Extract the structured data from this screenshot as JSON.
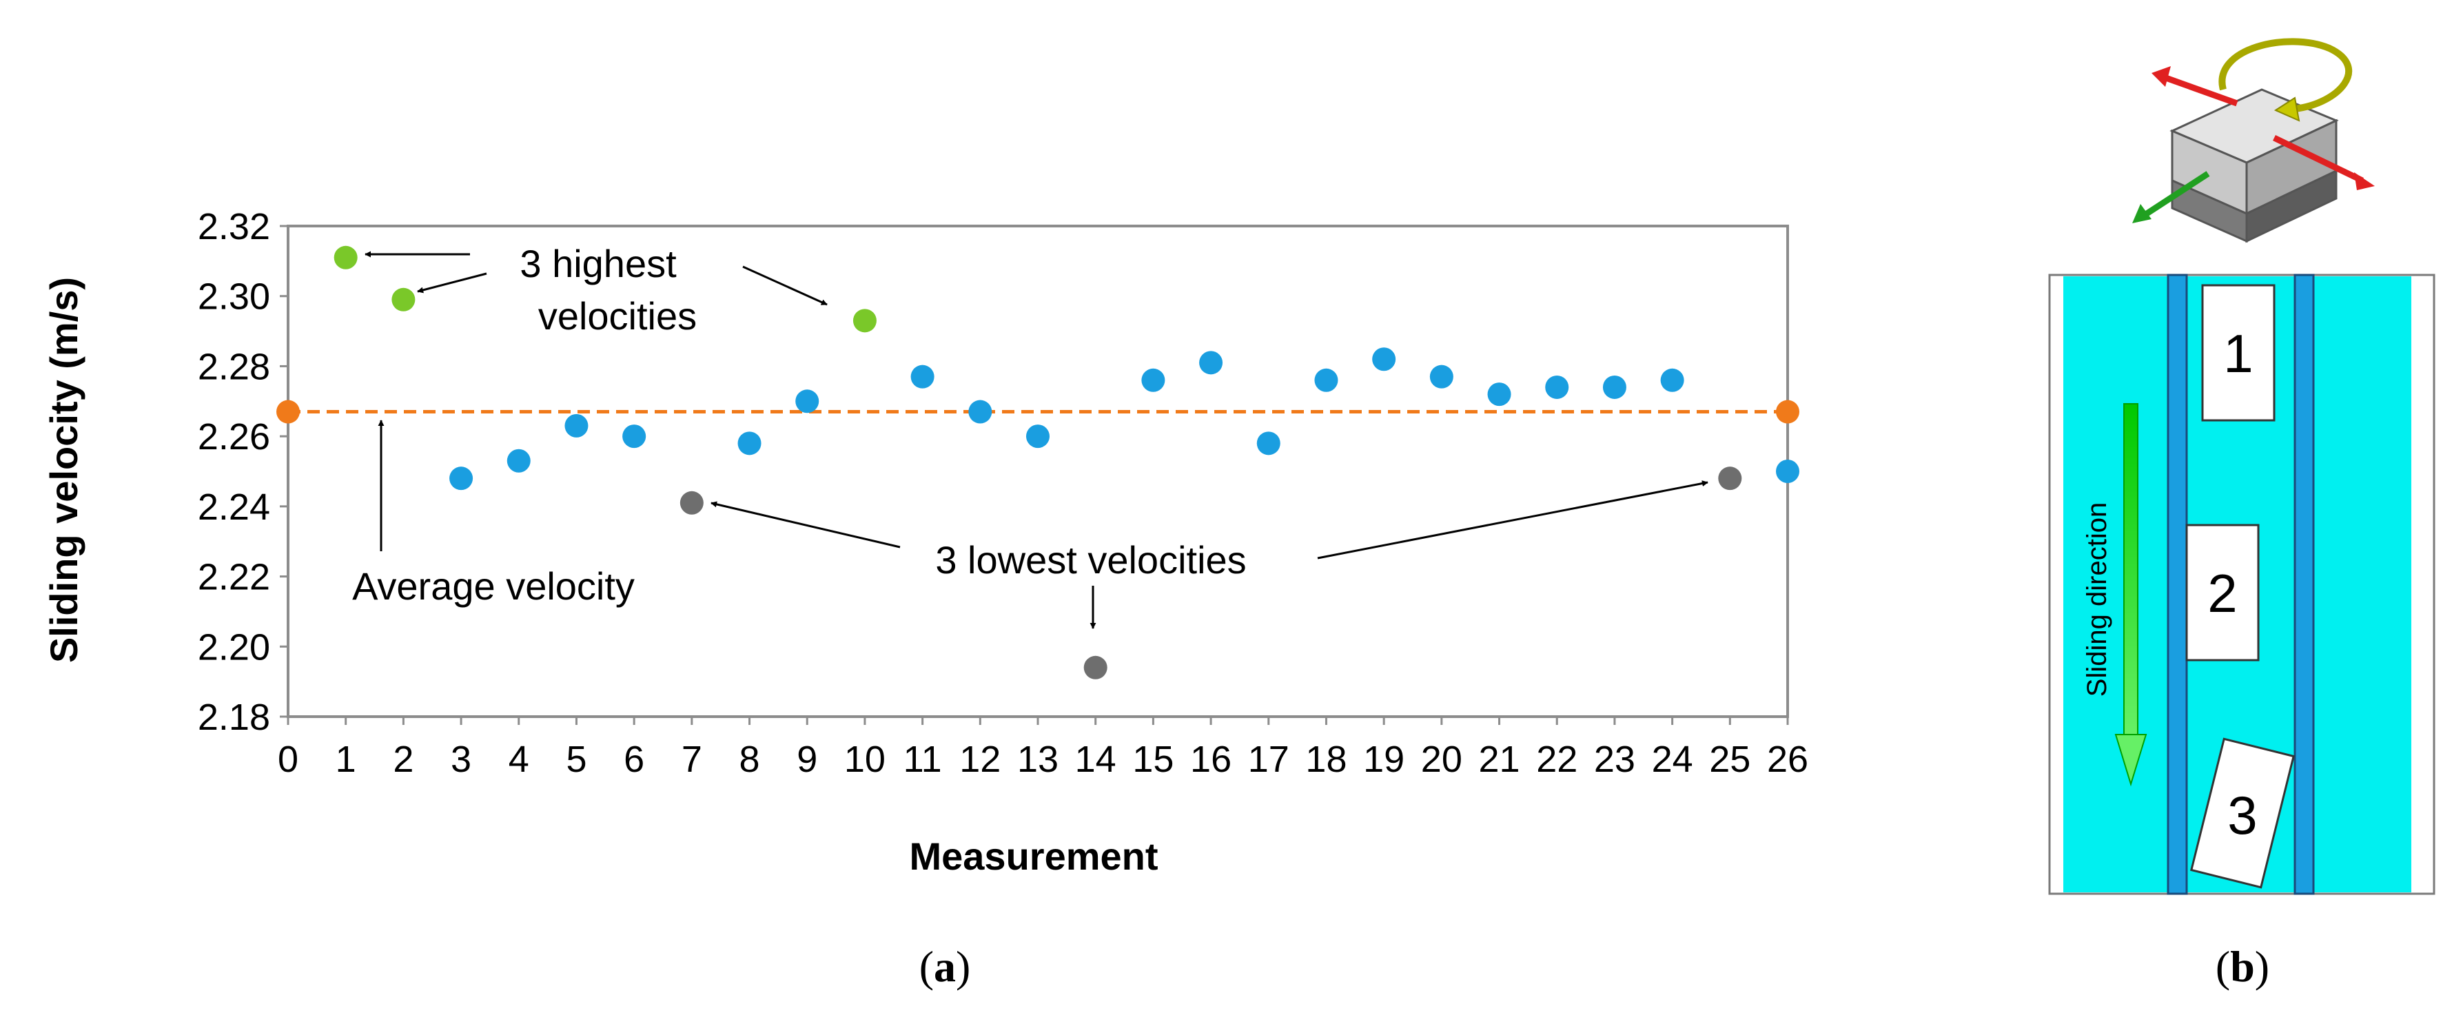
{
  "chart_data": {
    "type": "scatter",
    "xlabel": "Measurement",
    "ylabel": "Sliding velocity (m/s)",
    "xlim": [
      0,
      26
    ],
    "ylim": [
      2.18,
      2.32
    ],
    "xticks": [
      "0",
      "1",
      "2",
      "3",
      "4",
      "5",
      "6",
      "7",
      "8",
      "9",
      "10",
      "11",
      "12",
      "13",
      "14",
      "15",
      "16",
      "17",
      "18",
      "19",
      "20",
      "21",
      "22",
      "23",
      "24",
      "25",
      "26"
    ],
    "yticks": [
      "2.18",
      "2.20",
      "2.22",
      "2.24",
      "2.26",
      "2.28",
      "2.30",
      "2.32"
    ],
    "grid": false,
    "average": {
      "label": "Average velocity",
      "value": 2.267,
      "endpoints": [
        0,
        26
      ],
      "color": "#f07a1a"
    },
    "series": [
      {
        "name": "3 highest velocities",
        "color": "#7ac829",
        "points": [
          {
            "x": 1,
            "y": 2.311
          },
          {
            "x": 2,
            "y": 2.299
          },
          {
            "x": 10,
            "y": 2.293
          }
        ]
      },
      {
        "name": "measurements",
        "color": "#1a9ee0",
        "points": [
          {
            "x": 3,
            "y": 2.248
          },
          {
            "x": 4,
            "y": 2.253
          },
          {
            "x": 5,
            "y": 2.263
          },
          {
            "x": 6,
            "y": 2.26
          },
          {
            "x": 8,
            "y": 2.258
          },
          {
            "x": 9,
            "y": 2.27
          },
          {
            "x": 11,
            "y": 2.277
          },
          {
            "x": 12,
            "y": 2.267
          },
          {
            "x": 13,
            "y": 2.26
          },
          {
            "x": 15,
            "y": 2.276
          },
          {
            "x": 16,
            "y": 2.281
          },
          {
            "x": 17,
            "y": 2.258
          },
          {
            "x": 18,
            "y": 2.276
          },
          {
            "x": 19,
            "y": 2.282
          },
          {
            "x": 20,
            "y": 2.277
          },
          {
            "x": 21,
            "y": 2.272
          },
          {
            "x": 22,
            "y": 2.274
          },
          {
            "x": 23,
            "y": 2.274
          },
          {
            "x": 24,
            "y": 2.276
          },
          {
            "x": 26,
            "y": 2.25
          }
        ]
      },
      {
        "name": "3 lowest velocities",
        "color": "#6e6e6e",
        "points": [
          {
            "x": 7,
            "y": 2.241
          },
          {
            "x": 14,
            "y": 2.194
          },
          {
            "x": 25,
            "y": 2.248
          }
        ]
      }
    ],
    "annotations": {
      "highest_line1": "3 highest",
      "highest_line2": "velocities",
      "lowest": "3 lowest velocities",
      "average": "Average velocity"
    }
  },
  "panel_a": {
    "label_open": "(",
    "label_letter": "a",
    "label_close": ")"
  },
  "panel_b": {
    "label_open": "(",
    "label_letter": "b",
    "label_close": ")",
    "box_labels": [
      "1",
      "2",
      "3"
    ],
    "direction_label": "Sliding direction",
    "colors": {
      "channel": "#00f0f0",
      "rail": "#1a9ee0",
      "arrow_green": "#33e033",
      "arrow_red": "#e02020",
      "arrow_yellow": "#c8c800"
    }
  }
}
